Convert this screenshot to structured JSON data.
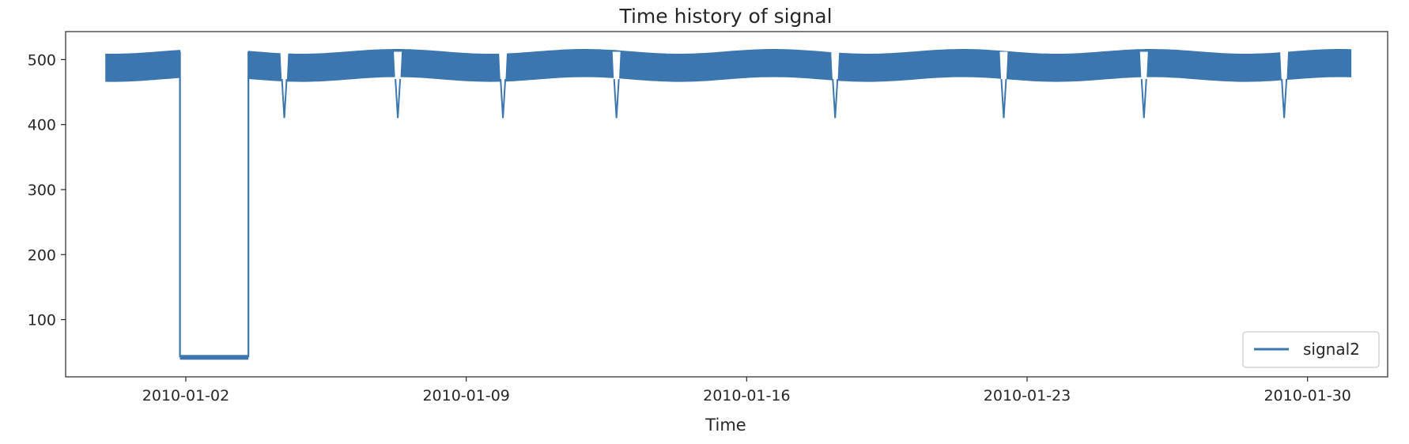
{
  "chart_data": {
    "type": "line",
    "title": "Time history of signal",
    "xlabel": "Time",
    "ylabel": "",
    "x_range": [
      "2009-12-30T00:00",
      "2010-02-01T00:00"
    ],
    "ylim": [
      12,
      543
    ],
    "x_ticks": [
      "2010-01-02",
      "2010-01-09",
      "2010-01-16",
      "2010-01-23",
      "2010-01-30"
    ],
    "y_ticks": [
      100,
      200,
      300,
      400,
      500
    ],
    "grid": false,
    "legend_position": "bottom-right",
    "series": [
      {
        "name": "signal2",
        "color": "#3b76af",
        "band_low": 470,
        "band_high": 512,
        "data": [
          {
            "start": "2009-12-31T00:00",
            "end": "2010-01-01T20:30",
            "state": "normal"
          },
          {
            "start": "2010-01-01T20:30",
            "end": "2010-01-03T13:30",
            "state": "low",
            "value": 42
          },
          {
            "start": "2010-01-03T13:30",
            "end": "2010-01-31T02:00",
            "state": "normal"
          }
        ],
        "dips": [
          {
            "time": "2010-01-04T11:00",
            "value": 410
          },
          {
            "time": "2010-01-07T07:00",
            "value": 410
          },
          {
            "time": "2010-01-09T22:00",
            "value": 410
          },
          {
            "time": "2010-01-12T18:00",
            "value": 410
          },
          {
            "time": "2010-01-18T05:00",
            "value": 410
          },
          {
            "time": "2010-01-22T10:00",
            "value": 410
          },
          {
            "time": "2010-01-25T22:00",
            "value": 410
          },
          {
            "time": "2010-01-29T10:00",
            "value": 410
          }
        ]
      }
    ]
  }
}
